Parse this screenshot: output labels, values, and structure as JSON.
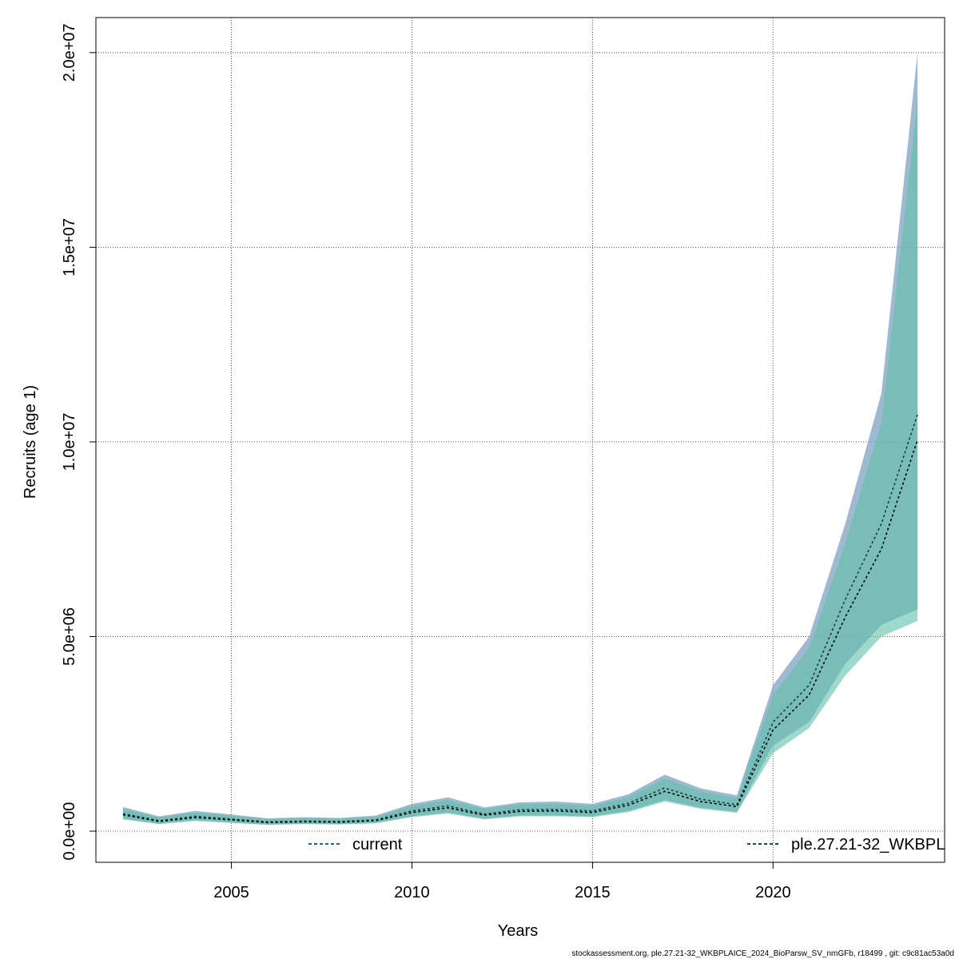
{
  "chart_data": {
    "type": "line",
    "title": "",
    "xlabel": "Years",
    "ylabel": "Recruits (age 1)",
    "xlim": [
      2001.25,
      2024.75
    ],
    "ylim": [
      -800000,
      20900000
    ],
    "x_ticks": [
      2005,
      2010,
      2015,
      2020
    ],
    "x_tick_labels": [
      "2005",
      "2010",
      "2015",
      "2020"
    ],
    "y_ticks": [
      0,
      5000000,
      10000000,
      15000000,
      20000000
    ],
    "y_tick_labels": [
      "0.0e+00",
      "5.0e+06",
      "1.0e+07",
      "1.5e+07",
      "2.0e+07"
    ],
    "grid": true,
    "x": [
      2002,
      2003,
      2004,
      2005,
      2006,
      2007,
      2008,
      2009,
      2010,
      2011,
      2012,
      2013,
      2014,
      2015,
      2016,
      2017,
      2018,
      2019,
      2020,
      2021,
      2022,
      2023,
      2024
    ],
    "series": [
      {
        "name": "current",
        "color": "#1f5f8b",
        "band_color": "#7fa3c0",
        "values": [
          450000,
          270000,
          380000,
          310000,
          240000,
          260000,
          250000,
          290000,
          520000,
          650000,
          440000,
          550000,
          560000,
          520000,
          720000,
          1110000,
          820000,
          680000,
          2800000,
          3750000,
          5950000,
          7900000,
          10700000
        ],
        "lower": [
          320000,
          190000,
          280000,
          220000,
          170000,
          190000,
          180000,
          210000,
          380000,
          480000,
          320000,
          400000,
          400000,
          380000,
          520000,
          800000,
          600000,
          500000,
          2200000,
          2800000,
          4300000,
          5300000,
          5700000
        ],
        "upper": [
          620000,
          380000,
          520000,
          430000,
          330000,
          360000,
          340000,
          400000,
          700000,
          870000,
          610000,
          740000,
          760000,
          700000,
          950000,
          1450000,
          1100000,
          920000,
          3750000,
          5000000,
          7900000,
          11250000,
          20000000
        ]
      },
      {
        "name": "ple.27.21-32_WKBPL",
        "color": "#1a4d3a",
        "band_color": "#5fbfa8",
        "values": [
          420000,
          250000,
          350000,
          290000,
          220000,
          240000,
          230000,
          270000,
          480000,
          600000,
          410000,
          510000,
          520000,
          480000,
          670000,
          1020000,
          760000,
          630000,
          2600000,
          3500000,
          5500000,
          7250000,
          10050000
        ],
        "lower": [
          300000,
          180000,
          260000,
          210000,
          160000,
          180000,
          170000,
          200000,
          360000,
          450000,
          300000,
          380000,
          380000,
          360000,
          490000,
          760000,
          570000,
          470000,
          2000000,
          2650000,
          4000000,
          5000000,
          5400000
        ],
        "upper": [
          580000,
          350000,
          480000,
          400000,
          310000,
          330000,
          320000,
          370000,
          650000,
          800000,
          570000,
          690000,
          700000,
          650000,
          880000,
          1350000,
          1020000,
          850000,
          3500000,
          4700000,
          7400000,
          10500000,
          18800000
        ]
      }
    ],
    "legend": [
      {
        "label": "current",
        "color": "#1f5f8b"
      },
      {
        "label": "ple.27.21-32_WKBPL",
        "color": "#1a4d3a"
      }
    ],
    "legend_placement": "bottom"
  },
  "footer": "stockassessment.org, ple.27.21-32_WKBPLAICE_2024_BioParsw_SV_nmGFb, r18499 , git: c9c81ac53a0d"
}
